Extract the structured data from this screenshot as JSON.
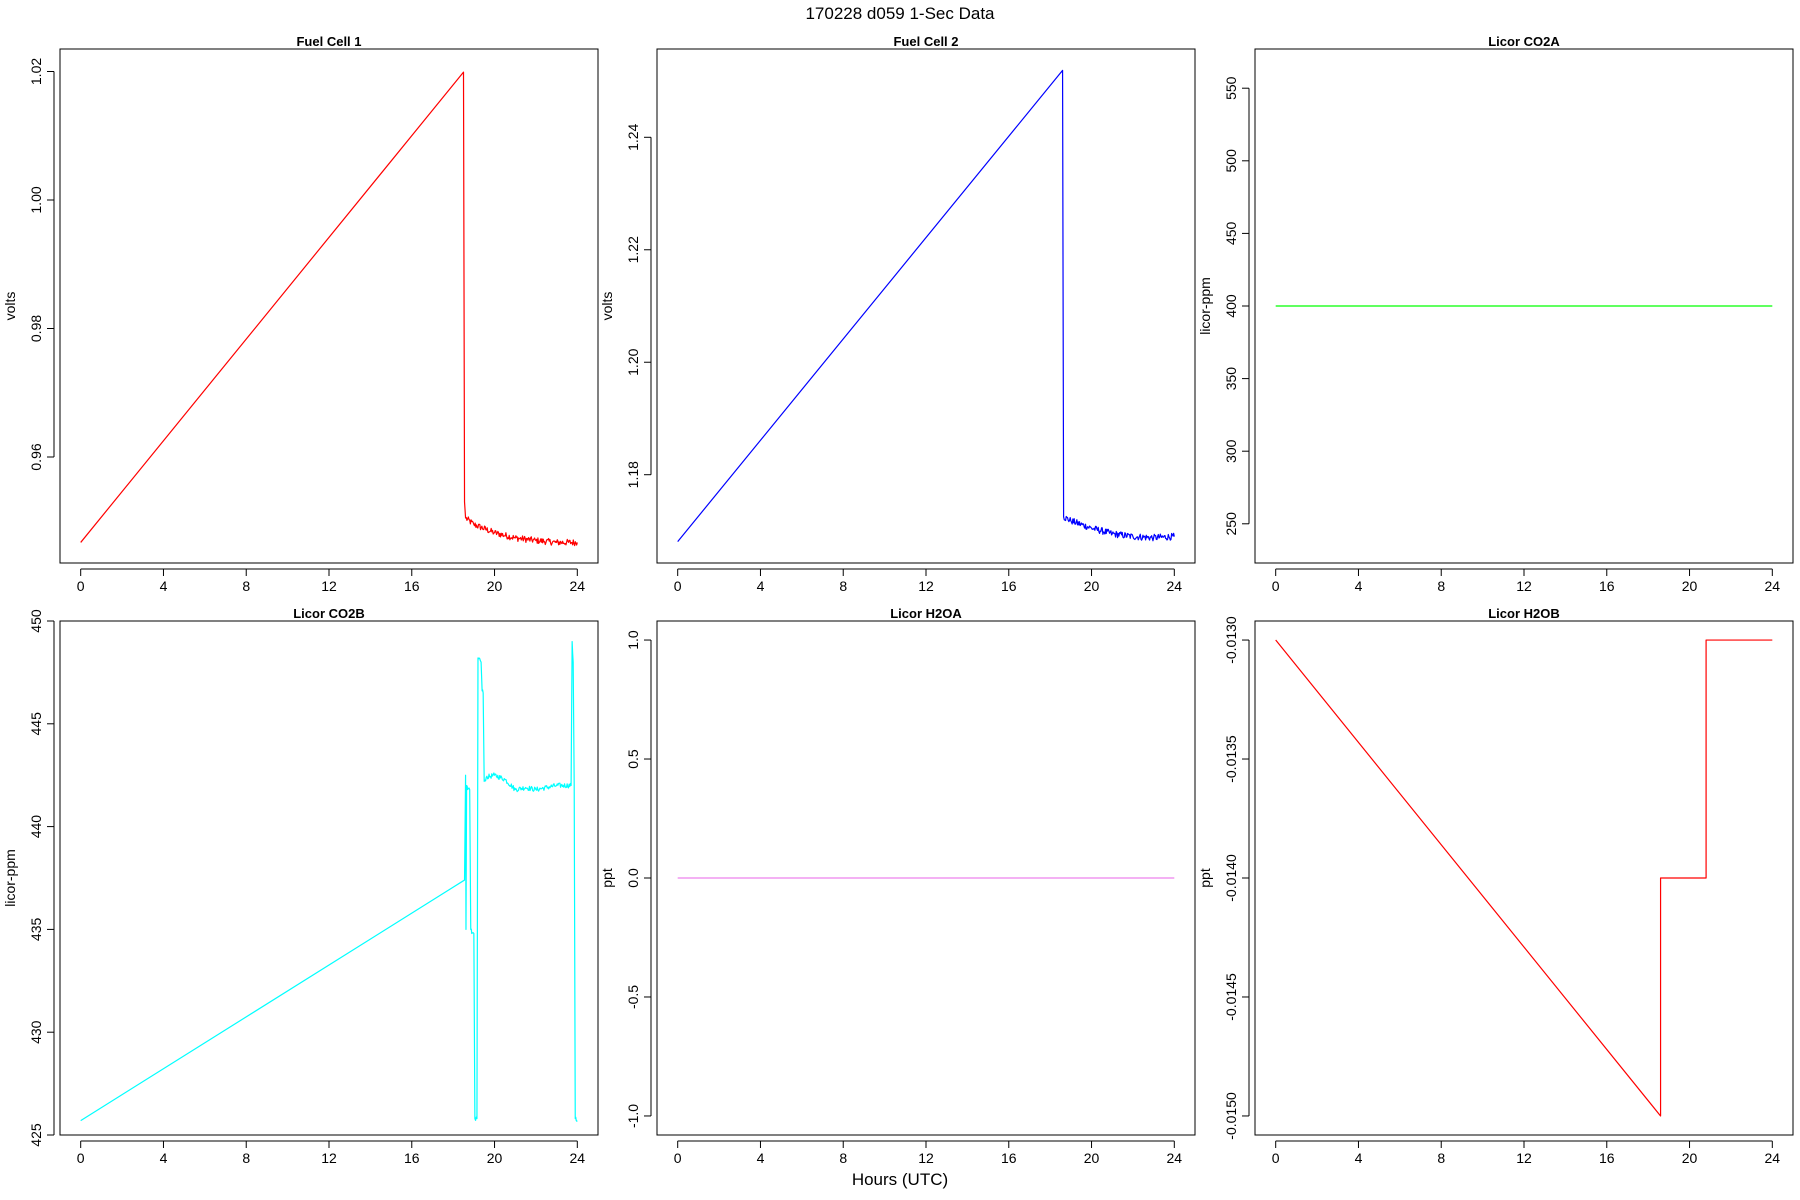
{
  "title": "170228   d059   1-Sec Data",
  "xlabel": "Hours (UTC)",
  "chart_data": [
    {
      "type": "line",
      "title": "Fuel Cell 1",
      "ylabel": "volts",
      "color": "#ff0000",
      "xlim": [
        -1,
        25
      ],
      "ylim": [
        0.9435,
        1.0235
      ],
      "xticks": [
        0,
        4,
        8,
        12,
        16,
        20,
        24
      ],
      "xtick_labels": [
        "0",
        "4",
        "8",
        "12",
        "16",
        "20",
        "24"
      ],
      "yticks": [
        0.96,
        0.98,
        1.0,
        1.02
      ],
      "ytick_labels": [
        "0.96",
        "0.98",
        "1.00",
        "1.02"
      ],
      "noise": 0.0005,
      "noise_from": 18.6,
      "series": [
        {
          "x": [
            0,
            18.5,
            18.55,
            18.6,
            19,
            20,
            21,
            22,
            23,
            24
          ],
          "y": [
            0.9467,
            1.0199,
            0.953,
            0.9505,
            0.9495,
            0.9482,
            0.9474,
            0.947,
            0.9467,
            0.9467
          ]
        }
      ]
    },
    {
      "type": "line",
      "title": "Fuel Cell 2",
      "ylabel": "volts",
      "color": "#0000ff",
      "xlim": [
        -1,
        25
      ],
      "ylim": [
        1.1643,
        1.2557
      ],
      "xticks": [
        0,
        4,
        8,
        12,
        16,
        20,
        24
      ],
      "xtick_labels": [
        "0",
        "4",
        "8",
        "12",
        "16",
        "20",
        "24"
      ],
      "yticks": [
        1.18,
        1.2,
        1.22,
        1.24
      ],
      "ytick_labels": [
        "1.18",
        "1.20",
        "1.22",
        "1.24"
      ],
      "noise": 0.0006,
      "noise_from": 18.65,
      "series": [
        {
          "x": [
            0,
            18.6,
            18.65,
            19,
            20,
            21,
            22,
            23,
            24
          ],
          "y": [
            1.1681,
            1.2519,
            1.1725,
            1.1718,
            1.1705,
            1.1695,
            1.169,
            1.1688,
            1.169
          ]
        }
      ]
    },
    {
      "type": "line",
      "title": "Licor CO2A",
      "ylabel": "licor-ppm",
      "color": "#00ff00",
      "xlim": [
        -1,
        25
      ],
      "ylim": [
        223,
        577
      ],
      "xticks": [
        0,
        4,
        8,
        12,
        16,
        20,
        24
      ],
      "xtick_labels": [
        "0",
        "4",
        "8",
        "12",
        "16",
        "20",
        "24"
      ],
      "yticks": [
        250,
        300,
        350,
        400,
        450,
        500,
        550
      ],
      "ytick_labels": [
        "250",
        "300",
        "350",
        "400",
        "450",
        "500",
        "550"
      ],
      "noise": 0,
      "series": [
        {
          "x": [
            0,
            24
          ],
          "y": [
            400,
            400
          ]
        }
      ]
    },
    {
      "type": "line",
      "title": "Licor CO2B",
      "ylabel": "licor-ppm",
      "color": "#00ffff",
      "xlim": [
        -1,
        25
      ],
      "ylim": [
        425,
        450
      ],
      "xticks": [
        0,
        4,
        8,
        12,
        16,
        20,
        24
      ],
      "xtick_labels": [
        "0",
        "4",
        "8",
        "12",
        "16",
        "20",
        "24"
      ],
      "yticks": [
        425,
        430,
        435,
        440,
        445,
        450
      ],
      "ytick_labels": [
        "425",
        "430",
        "435",
        "440",
        "445",
        "450"
      ],
      "noise": 0.12,
      "noise_from": 18.6,
      "series": [
        {
          "x": [
            0,
            18.55,
            18.6,
            18.62,
            18.65,
            18.7,
            18.8,
            18.85,
            18.9,
            19.0,
            19.05,
            19.15,
            19.2,
            19.25,
            19.35,
            19.4,
            19.45,
            19.5,
            19.6,
            20.0,
            20.5,
            21.0,
            21.5,
            22.0,
            23.0,
            23.7,
            23.75,
            23.8,
            23.85,
            23.9,
            23.95,
            24.0
          ],
          "y": [
            425.7,
            437.4,
            442.5,
            435.0,
            442.0,
            441.8,
            441.8,
            435.0,
            434.8,
            434.8,
            425.8,
            425.8,
            448.2,
            448.2,
            448.0,
            446.6,
            446.5,
            442.2,
            442.4,
            442.5,
            442.3,
            441.8,
            441.9,
            441.8,
            442.0,
            442.0,
            449.0,
            448.0,
            442.0,
            425.8,
            425.7,
            425.7
          ]
        }
      ]
    },
    {
      "type": "line",
      "title": "Licor H2OA",
      "ylabel": "ppt",
      "color": "#ee82ee",
      "xlim": [
        -1,
        25
      ],
      "ylim": [
        -1.08,
        1.08
      ],
      "xticks": [
        0,
        4,
        8,
        12,
        16,
        20,
        24
      ],
      "xtick_labels": [
        "0",
        "4",
        "8",
        "12",
        "16",
        "20",
        "24"
      ],
      "yticks": [
        -1.0,
        -0.5,
        0.0,
        0.5,
        1.0
      ],
      "ytick_labels": [
        "-1.0",
        "-0.5",
        "0.0",
        "0.5",
        "1.0"
      ],
      "noise": 0,
      "series": [
        {
          "x": [
            0,
            24
          ],
          "y": [
            0,
            0
          ]
        }
      ]
    },
    {
      "type": "line",
      "title": "Licor H2OB",
      "ylabel": "ppt",
      "color": "#ff0000",
      "xlim": [
        -1,
        25
      ],
      "ylim": [
        -0.01508,
        -0.01292
      ],
      "xticks": [
        0,
        4,
        8,
        12,
        16,
        20,
        24
      ],
      "xtick_labels": [
        "0",
        "4",
        "8",
        "12",
        "16",
        "20",
        "24"
      ],
      "yticks": [
        -0.015,
        -0.0145,
        -0.014,
        -0.0135,
        -0.013
      ],
      "ytick_labels": [
        "-0.0150",
        "-0.0145",
        "-0.0140",
        "-0.0135",
        "-0.0130"
      ],
      "noise": 0,
      "series": [
        {
          "x": [
            0,
            18.6,
            18.6,
            20.8,
            20.8,
            24
          ],
          "y": [
            -0.013,
            -0.015,
            -0.014,
            -0.014,
            -0.013,
            -0.013
          ]
        }
      ]
    }
  ]
}
